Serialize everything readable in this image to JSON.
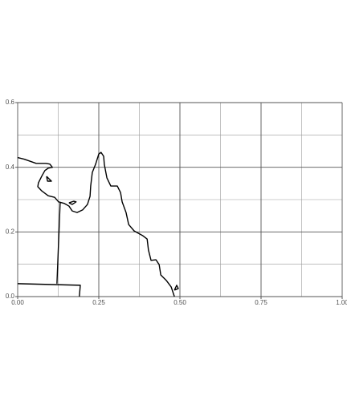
{
  "chart_data": {
    "type": "line",
    "x": [
      0,
      0.02,
      0.057,
      0.087,
      0.099,
      0.107,
      0.094,
      0.084,
      0.074,
      0.064,
      0.062,
      0.074,
      0.094,
      0.114,
      0.126,
      0.144,
      0.158,
      0.168,
      0.183,
      0.2,
      0.215,
      0.223,
      0.225,
      0.23,
      0.24,
      0.25,
      0.257,
      0.265,
      0.267,
      0.275,
      0.287,
      0.307,
      0.317,
      0.322,
      0.334,
      0.342,
      0.359,
      0.386,
      0.399,
      0.403,
      0.411,
      0.426,
      0.436,
      0.441,
      0.458,
      0.473,
      0.483,
      null,
      0.158,
      0.173,
      0.18,
      0.168,
      0.158,
      null,
      0.089,
      0.104,
      0.092,
      0.089,
      null,
      0.483,
      0.49,
      0.495,
      0.483,
      null,
      0.131,
      0.121,
      null,
      0,
      0.193,
      0.19
    ],
    "series": [
      {
        "color": "#000000",
        "values": [
          0.43,
          0.425,
          0.412,
          0.412,
          0.41,
          0.4,
          0.397,
          0.39,
          0.372,
          0.352,
          0.34,
          0.327,
          0.312,
          0.307,
          0.293,
          0.288,
          0.28,
          0.265,
          0.26,
          0.268,
          0.285,
          0.31,
          0.342,
          0.384,
          0.409,
          0.441,
          0.446,
          0.434,
          0.409,
          0.367,
          0.342,
          0.342,
          0.322,
          0.293,
          0.26,
          0.223,
          0.203,
          0.188,
          0.178,
          0.144,
          0.112,
          0.114,
          0.099,
          0.067,
          0.05,
          0.03,
          0,
          null,
          0.29,
          0.295,
          0.293,
          0.285,
          0.29,
          null,
          0.372,
          0.357,
          0.357,
          0.372,
          null,
          0.02,
          0.035,
          0.025,
          0.02,
          null,
          0.293,
          0.04,
          null,
          0.04,
          0.035,
          0
        ]
      }
    ],
    "xlim": [
      0,
      1
    ],
    "xticks": [
      {
        "value": 0,
        "label": "0.00"
      },
      {
        "value": 0.25,
        "label": "0.25"
      },
      {
        "value": 0.5,
        "label": "0.50"
      },
      {
        "value": 0.75,
        "label": "0.75"
      },
      {
        "value": 1,
        "label": "1.00"
      }
    ],
    "ylim": [
      0,
      0.6
    ],
    "yticks": [
      {
        "value": 0,
        "label": "0.0"
      },
      {
        "value": 0.2,
        "label": "0.2"
      },
      {
        "value": 0.4,
        "label": "0.4"
      },
      {
        "value": 0.6,
        "label": "0.6"
      }
    ],
    "grid": true,
    "minor_grid": true
  }
}
